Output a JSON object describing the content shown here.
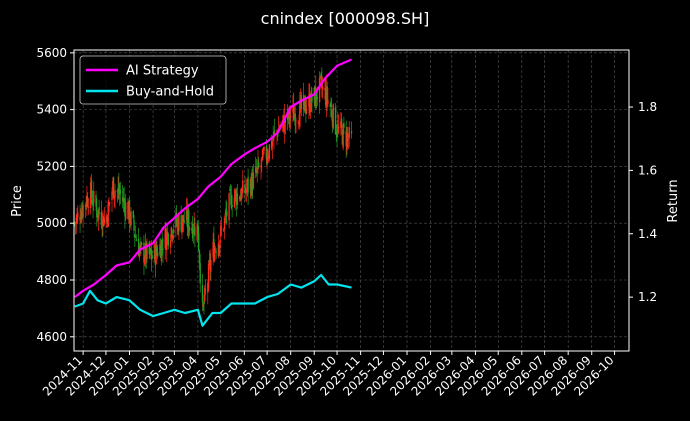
{
  "chart_data": {
    "type": "line",
    "title": "cnindex [000098.SH]",
    "xlabel": "",
    "ylabel": "Price",
    "y2label": "Return",
    "background": "#000000",
    "grid": true,
    "legend_position": "top-left",
    "x_ticks": [
      "2024-11",
      "2024-12",
      "2025-01",
      "2025-02",
      "2025-03",
      "2025-04",
      "2025-05",
      "2025-06",
      "2025-07",
      "2025-08",
      "2025-09",
      "2025-10",
      "2025-11",
      "2025-12",
      "2026-01",
      "2026-02",
      "2026-03",
      "2026-04",
      "2026-05",
      "2026-06",
      "2026-07",
      "2026-08",
      "2026-09",
      "2026-10"
    ],
    "xlim": [
      "2024-10-20",
      "2026-10-20"
    ],
    "ylim": [
      4550,
      5610
    ],
    "y_ticks": [
      4600,
      4800,
      5000,
      5200,
      5400,
      5600
    ],
    "y2lim": [
      1.03,
      1.98
    ],
    "y2_ticks": [
      1.2,
      1.4,
      1.6,
      1.8
    ],
    "series": [
      {
        "name": "AI Strategy",
        "axis": "right",
        "color": "#ff00ff",
        "x": [
          "2024-10-21",
          "2024-11-01",
          "2024-11-15",
          "2024-12-01",
          "2024-12-15",
          "2025-01-01",
          "2025-01-15",
          "2025-02-01",
          "2025-02-15",
          "2025-03-01",
          "2025-03-15",
          "2025-04-01",
          "2025-04-15",
          "2025-05-01",
          "2025-05-15",
          "2025-06-01",
          "2025-06-15",
          "2025-07-01",
          "2025-07-15",
          "2025-08-01",
          "2025-08-15",
          "2025-09-01",
          "2025-09-15",
          "2025-10-01",
          "2025-10-20"
        ],
        "values": [
          1.2,
          1.22,
          1.24,
          1.27,
          1.3,
          1.31,
          1.35,
          1.37,
          1.42,
          1.45,
          1.48,
          1.51,
          1.55,
          1.58,
          1.62,
          1.65,
          1.67,
          1.69,
          1.72,
          1.8,
          1.82,
          1.84,
          1.89,
          1.93,
          1.95
        ]
      },
      {
        "name": "Buy-and-Hold",
        "axis": "right",
        "color": "#00e5ee",
        "x": [
          "2024-10-21",
          "2024-11-01",
          "2024-11-10",
          "2024-11-20",
          "2024-12-01",
          "2024-12-15",
          "2025-01-01",
          "2025-01-15",
          "2025-02-01",
          "2025-02-15",
          "2025-03-01",
          "2025-03-15",
          "2025-04-01",
          "2025-04-07",
          "2025-04-20",
          "2025-05-01",
          "2025-05-15",
          "2025-06-01",
          "2025-06-15",
          "2025-07-01",
          "2025-07-15",
          "2025-08-01",
          "2025-08-15",
          "2025-09-01",
          "2025-09-10",
          "2025-09-20",
          "2025-10-01",
          "2025-10-20"
        ],
        "values": [
          1.17,
          1.18,
          1.22,
          1.19,
          1.18,
          1.2,
          1.19,
          1.16,
          1.14,
          1.15,
          1.16,
          1.15,
          1.16,
          1.11,
          1.15,
          1.15,
          1.18,
          1.18,
          1.18,
          1.2,
          1.21,
          1.24,
          1.23,
          1.25,
          1.27,
          1.24,
          1.24,
          1.23
        ]
      },
      {
        "name": "",
        "axis": "left",
        "kind": "candlestick",
        "color": "#ff2a1a",
        "color_down": "#22a022",
        "x": [
          "2024-10-21",
          "2024-11-01",
          "2024-11-10",
          "2024-11-20",
          "2024-12-01",
          "2024-12-10",
          "2024-12-20",
          "2025-01-01",
          "2025-01-15",
          "2025-02-01",
          "2025-02-15",
          "2025-03-01",
          "2025-03-15",
          "2025-04-01",
          "2025-04-07",
          "2025-04-20",
          "2025-05-01",
          "2025-05-15",
          "2025-06-01",
          "2025-06-15",
          "2025-07-01",
          "2025-07-15",
          "2025-08-01",
          "2025-08-15",
          "2025-09-01",
          "2025-09-10",
          "2025-09-20",
          "2025-10-01",
          "2025-10-20"
        ],
        "values": [
          5000,
          5060,
          5110,
          5040,
          5010,
          5130,
          5100,
          5030,
          4900,
          4880,
          4940,
          5000,
          5010,
          4980,
          4680,
          4900,
          4960,
          5090,
          5110,
          5160,
          5250,
          5330,
          5380,
          5400,
          5440,
          5480,
          5430,
          5330,
          5290
        ]
      }
    ]
  }
}
